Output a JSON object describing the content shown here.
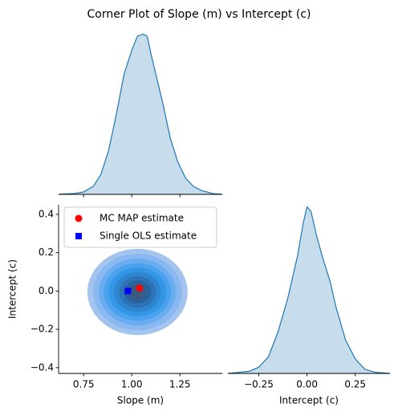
{
  "title": "Corner Plot of Slope (m) vs Intercept (c)",
  "chart_data": [
    {
      "type": "kde",
      "color": "#1f77b4",
      "x": [
        0.62,
        0.7,
        0.75,
        0.8,
        0.84,
        0.88,
        0.92,
        0.96,
        1.0,
        1.03,
        1.06,
        1.08,
        1.1,
        1.13,
        1.16,
        1.2,
        1.24,
        1.28,
        1.32,
        1.36,
        1.42,
        1.47
      ],
      "values": [
        0.0,
        0.02,
        0.06,
        0.2,
        0.5,
        1.1,
        2.0,
        3.0,
        3.6,
        3.95,
        4.0,
        3.95,
        3.5,
        2.9,
        2.3,
        1.4,
        0.8,
        0.4,
        0.2,
        0.1,
        0.02,
        0.0
      ],
      "xlim": [
        0.62,
        1.47
      ],
      "ylim": [
        0,
        4.05
      ],
      "xticks": [
        0.75,
        1,
        1.25
      ]
    },
    {
      "type": "contour",
      "xlabel": "Slope (m)",
      "ylabel": "Intercept (c)",
      "xlim": [
        0.62,
        1.47
      ],
      "ylim": [
        -0.43,
        0.45
      ],
      "xticks": [
        0.75,
        {
          "value": 1,
          "label": "1.00"
        },
        1.25
      ],
      "yticks": [
        {
          "value": -0.4,
          "label": "−0.4"
        },
        {
          "value": -0.2,
          "label": "−0.2"
        },
        {
          "value": 0,
          "label": "0.0"
        },
        0.2,
        0.4
      ],
      "center": [
        1.03,
        -0.005
      ],
      "contours": [
        [
          0.26,
          0.225
        ],
        [
          0.23,
          0.2
        ],
        [
          0.2,
          0.175
        ],
        [
          0.175,
          0.15
        ],
        [
          0.15,
          0.128
        ],
        [
          0.122,
          0.105
        ],
        [
          0.096,
          0.083
        ],
        [
          0.07,
          0.06
        ],
        [
          0.044,
          0.038
        ]
      ],
      "colors": [
        "#a3c4ee",
        "#8ab8f0",
        "#6aacf0",
        "#4aa1ee",
        "#3496e6",
        "#2f86d0",
        "#2c74b6",
        "#29629c",
        "#3a5a80"
      ],
      "points": [
        {
          "name": "MC MAP estimate",
          "x": 1.04,
          "y": 0.015,
          "color": "#ff0000",
          "marker": "circle"
        },
        {
          "name": "Single OLS estimate",
          "x": 0.98,
          "y": 0.0,
          "color": "#0000ff",
          "marker": "square"
        }
      ],
      "legend": "upper left"
    },
    {
      "type": "kde",
      "color": "#1f77b4",
      "xlabel": "Intercept (c)",
      "x": [
        -0.41,
        -0.3,
        -0.25,
        -0.2,
        -0.15,
        -0.1,
        -0.05,
        -0.02,
        0.0,
        0.02,
        0.05,
        0.08,
        0.12,
        0.15,
        0.2,
        0.25,
        0.3,
        0.35,
        0.43
      ],
      "values": [
        0.0,
        0.05,
        0.15,
        0.4,
        1.0,
        1.8,
        2.8,
        3.6,
        4.0,
        3.9,
        3.3,
        2.8,
        2.2,
        1.6,
        0.8,
        0.35,
        0.1,
        0.03,
        0.0
      ],
      "xlim": [
        -0.41,
        0.43
      ],
      "ylim": [
        0,
        4.05
      ],
      "xticks": [
        {
          "value": -0.25,
          "label": "−0.25"
        },
        {
          "value": 0,
          "label": "0.00"
        },
        0.25
      ]
    }
  ]
}
